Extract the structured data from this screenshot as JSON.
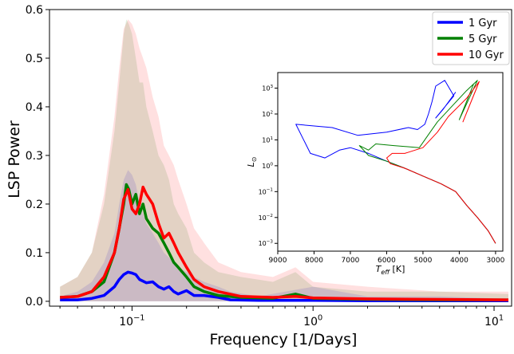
{
  "chart_data": [
    {
      "type": "line",
      "title": "",
      "xlabel": "Frequency [1/Days]",
      "ylabel": "LSP Power",
      "xscale": "log",
      "xlim": [
        0.035,
        12.5
      ],
      "ylim": [
        -0.01,
        0.6
      ],
      "xticks": [
        {
          "value": 0.1,
          "label": "10",
          "exp": "−1"
        },
        {
          "value": 1,
          "label": "10",
          "exp": "0"
        },
        {
          "value": 10,
          "label": "10",
          "exp": "1"
        }
      ],
      "yticks": [
        "0.0",
        "0.1",
        "0.2",
        "0.3",
        "0.4",
        "0.5",
        "0.6"
      ],
      "legend_position": "top-right",
      "grid": false,
      "series": [
        {
          "name": "1 Gyr",
          "color": "#0000ff",
          "x": [
            0.04,
            0.05,
            0.06,
            0.07,
            0.08,
            0.085,
            0.09,
            0.095,
            0.1,
            0.105,
            0.11,
            0.12,
            0.13,
            0.14,
            0.15,
            0.16,
            0.17,
            0.18,
            0.2,
            0.22,
            0.25,
            0.3,
            0.35,
            0.5,
            1.0,
            2.0,
            5.0,
            12.0
          ],
          "y": [
            0.003,
            0.003,
            0.006,
            0.012,
            0.03,
            0.045,
            0.055,
            0.06,
            0.058,
            0.055,
            0.045,
            0.038,
            0.04,
            0.03,
            0.025,
            0.03,
            0.02,
            0.015,
            0.022,
            0.012,
            0.012,
            0.008,
            0.003,
            0.002,
            0.002,
            0.001,
            0.001,
            0.001
          ],
          "band": [
            0.01,
            0.02,
            0.04,
            0.08,
            0.14,
            0.2,
            0.25,
            0.27,
            0.26,
            0.24,
            0.2,
            0.16,
            0.14,
            0.12,
            0.1,
            0.09,
            0.08,
            0.07,
            0.06,
            0.05,
            0.04,
            0.03,
            0.02,
            0.01,
            0.03,
            0.01,
            0.01,
            0.005
          ]
        },
        {
          "name": "5 Gyr",
          "color": "#008000",
          "x": [
            0.04,
            0.05,
            0.06,
            0.07,
            0.08,
            0.085,
            0.09,
            0.093,
            0.096,
            0.1,
            0.105,
            0.11,
            0.115,
            0.12,
            0.13,
            0.14,
            0.15,
            0.16,
            0.17,
            0.18,
            0.2,
            0.22,
            0.25,
            0.3,
            0.4,
            0.6,
            0.8,
            1.0,
            2.0,
            5.0,
            12.0
          ],
          "y": [
            0.008,
            0.01,
            0.02,
            0.04,
            0.1,
            0.15,
            0.2,
            0.24,
            0.23,
            0.2,
            0.22,
            0.18,
            0.2,
            0.17,
            0.15,
            0.14,
            0.12,
            0.1,
            0.08,
            0.07,
            0.05,
            0.03,
            0.02,
            0.012,
            0.008,
            0.006,
            0.015,
            0.006,
            0.004,
            0.003,
            0.003
          ],
          "band": [
            0.03,
            0.05,
            0.1,
            0.2,
            0.35,
            0.45,
            0.55,
            0.58,
            0.57,
            0.55,
            0.5,
            0.45,
            0.45,
            0.4,
            0.35,
            0.3,
            0.28,
            0.25,
            0.2,
            0.18,
            0.15,
            0.1,
            0.08,
            0.06,
            0.05,
            0.04,
            0.06,
            0.03,
            0.02,
            0.02,
            0.015
          ]
        },
        {
          "name": "10 Gyr",
          "color": "#ff0000",
          "x": [
            0.04,
            0.05,
            0.06,
            0.07,
            0.08,
            0.085,
            0.09,
            0.095,
            0.1,
            0.105,
            0.11,
            0.115,
            0.12,
            0.13,
            0.14,
            0.15,
            0.16,
            0.17,
            0.18,
            0.2,
            0.22,
            0.25,
            0.3,
            0.4,
            0.6,
            0.8,
            1.0,
            2.0,
            5.0,
            12.0
          ],
          "y": [
            0.008,
            0.01,
            0.02,
            0.05,
            0.1,
            0.15,
            0.21,
            0.23,
            0.19,
            0.18,
            0.2,
            0.235,
            0.22,
            0.2,
            0.16,
            0.13,
            0.14,
            0.12,
            0.1,
            0.07,
            0.045,
            0.03,
            0.02,
            0.01,
            0.008,
            0.01,
            0.007,
            0.005,
            0.004,
            0.003
          ],
          "band": [
            0.03,
            0.05,
            0.1,
            0.22,
            0.38,
            0.48,
            0.56,
            0.58,
            0.57,
            0.55,
            0.52,
            0.5,
            0.48,
            0.42,
            0.38,
            0.32,
            0.3,
            0.28,
            0.25,
            0.2,
            0.15,
            0.12,
            0.08,
            0.06,
            0.05,
            0.07,
            0.04,
            0.03,
            0.02,
            0.02
          ]
        }
      ]
    },
    {
      "type": "line",
      "title": "",
      "xlabel": "T_eff [K]",
      "ylabel": "L_⊙",
      "yscale": "log",
      "xlim": [
        9000,
        2800
      ],
      "ylim": [
        0.0005,
        4000
      ],
      "xticks": [
        "9000",
        "8000",
        "7000",
        "6000",
        "5000",
        "4000",
        "3000"
      ],
      "yticks": [
        {
          "label": "10",
          "exp": "−3"
        },
        {
          "label": "10",
          "exp": "−2"
        },
        {
          "label": "10",
          "exp": "−1"
        },
        {
          "label": "10",
          "exp": "0"
        },
        {
          "label": "10",
          "exp": "1"
        },
        {
          "label": "10",
          "exp": "2"
        },
        {
          "label": "10",
          "exp": "3"
        }
      ],
      "grid": false,
      "series": [
        {
          "name": "1 Gyr",
          "color": "#0000ff",
          "teff": [
            3000,
            3200,
            3500,
            3800,
            4100,
            4500,
            5000,
            5500,
            6000,
            6500,
            7000,
            7300,
            7700,
            8100,
            8500,
            7500,
            6800,
            6000,
            5400,
            5150,
            4950,
            4850,
            4750,
            4650,
            4400,
            4150,
            4650,
            4450,
            4100
          ],
          "lum": [
            0.001,
            0.003,
            0.01,
            0.03,
            0.1,
            0.2,
            0.4,
            0.8,
            1.5,
            3.0,
            5.0,
            4.0,
            2.0,
            3.0,
            40.0,
            30.0,
            15.0,
            20.0,
            30.0,
            25.0,
            40.0,
            100.0,
            300.0,
            1200.0,
            2000.0,
            500.0,
            70.0,
            150.0,
            700.0
          ]
        },
        {
          "name": "5 Gyr",
          "color": "#008000",
          "teff": [
            3000,
            3200,
            3500,
            3800,
            4100,
            4500,
            5000,
            5500,
            6000,
            6500,
            6750,
            6500,
            6300,
            5800,
            5100,
            4800,
            4600,
            4200,
            3800,
            3500,
            4000,
            3600
          ],
          "lum": [
            0.001,
            0.003,
            0.01,
            0.03,
            0.1,
            0.2,
            0.4,
            0.8,
            1.5,
            2.5,
            6.0,
            4.0,
            7.0,
            6.0,
            5.0,
            20.0,
            50.0,
            200.0,
            800.0,
            2000.0,
            60.0,
            1500.0
          ]
        },
        {
          "name": "10 Gyr",
          "color": "#ff0000",
          "teff": [
            3000,
            3200,
            3500,
            3800,
            4100,
            4500,
            5000,
            5500,
            5900,
            6000,
            5850,
            5500,
            5000,
            4600,
            4300,
            3800,
            3450,
            3900,
            3500
          ],
          "lum": [
            0.001,
            0.003,
            0.01,
            0.03,
            0.1,
            0.2,
            0.4,
            0.8,
            1.2,
            2.0,
            3.0,
            3.0,
            5.0,
            20.0,
            80.0,
            400.0,
            1800.0,
            50.0,
            1200.0
          ]
        }
      ]
    }
  ]
}
